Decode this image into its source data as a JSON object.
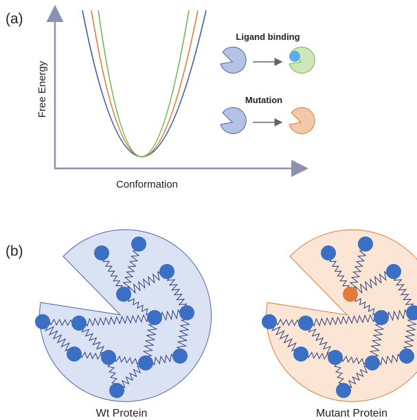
{
  "panel_a": {
    "label": "(a)",
    "y_axis_label": "Free Energy",
    "x_axis_label": "Conformation",
    "ligand_label": "Ligand binding",
    "mutation_label": "Mutation"
  },
  "panel_b": {
    "label": "(b)",
    "wt_label": "Wt Protein",
    "mutant_label": "Mutant Protein"
  }
}
